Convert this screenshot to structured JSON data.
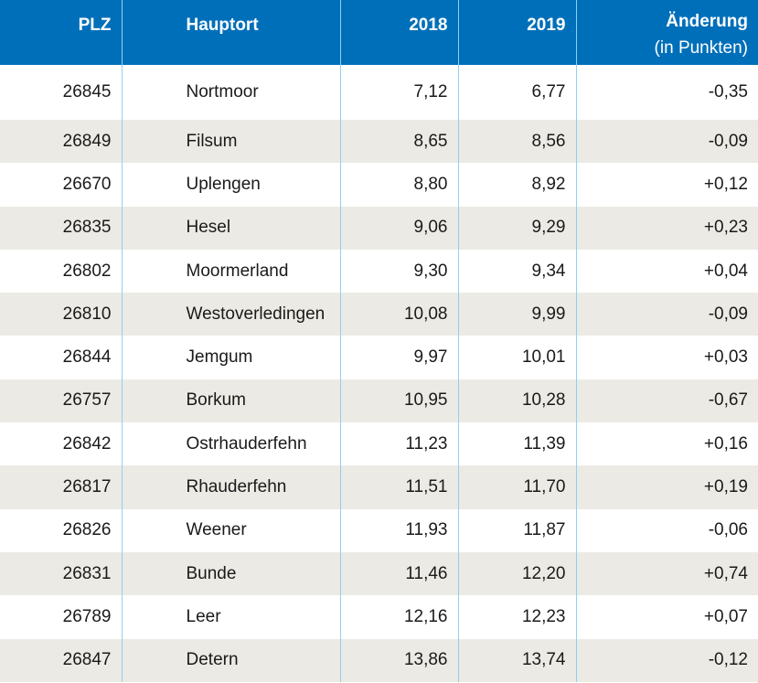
{
  "header": {
    "plz": "PLZ",
    "hauptort": "Hauptort",
    "year_2018": "2018",
    "year_2019": "2019",
    "change_line1": "Änderung",
    "change_line2": "(in Punkten)"
  },
  "rows": [
    {
      "plz": "26845",
      "ort": "Nortmoor",
      "v2018": "7,12",
      "v2019": "6,77",
      "change": "-0,35"
    },
    {
      "plz": "26849",
      "ort": "Filsum",
      "v2018": "8,65",
      "v2019": "8,56",
      "change": "-0,09"
    },
    {
      "plz": "26670",
      "ort": "Uplengen",
      "v2018": "8,80",
      "v2019": "8,92",
      "change": "+0,12"
    },
    {
      "plz": "26835",
      "ort": "Hesel",
      "v2018": "9,06",
      "v2019": "9,29",
      "change": "+0,23"
    },
    {
      "plz": "26802",
      "ort": "Moormerland",
      "v2018": "9,30",
      "v2019": "9,34",
      "change": "+0,04"
    },
    {
      "plz": "26810",
      "ort": "Westoverledingen",
      "v2018": "10,08",
      "v2019": "9,99",
      "change": "-0,09"
    },
    {
      "plz": "26844",
      "ort": "Jemgum",
      "v2018": "9,97",
      "v2019": "10,01",
      "change": "+0,03"
    },
    {
      "plz": "26757",
      "ort": "Borkum",
      "v2018": "10,95",
      "v2019": "10,28",
      "change": "-0,67"
    },
    {
      "plz": "26842",
      "ort": "Ostrhauderfehn",
      "v2018": "11,23",
      "v2019": "11,39",
      "change": "+0,16"
    },
    {
      "plz": "26817",
      "ort": "Rhauderfehn",
      "v2018": "11,51",
      "v2019": "11,70",
      "change": "+0,19"
    },
    {
      "plz": "26826",
      "ort": "Weener",
      "v2018": "11,93",
      "v2019": "11,87",
      "change": "-0,06"
    },
    {
      "plz": "26831",
      "ort": "Bunde",
      "v2018": "11,46",
      "v2019": "12,20",
      "change": "+0,74"
    },
    {
      "plz": "26789",
      "ort": "Leer",
      "v2018": "12,16",
      "v2019": "12,23",
      "change": "+0,07"
    },
    {
      "plz": "26847",
      "ort": "Detern",
      "v2018": "13,86",
      "v2019": "13,74",
      "change": "-0,12"
    }
  ],
  "colors": {
    "header_bg": "#006fb9",
    "header_text": "#ffffff",
    "stripe_bg": "#ebeae4",
    "divider": "#8fd0f2"
  }
}
